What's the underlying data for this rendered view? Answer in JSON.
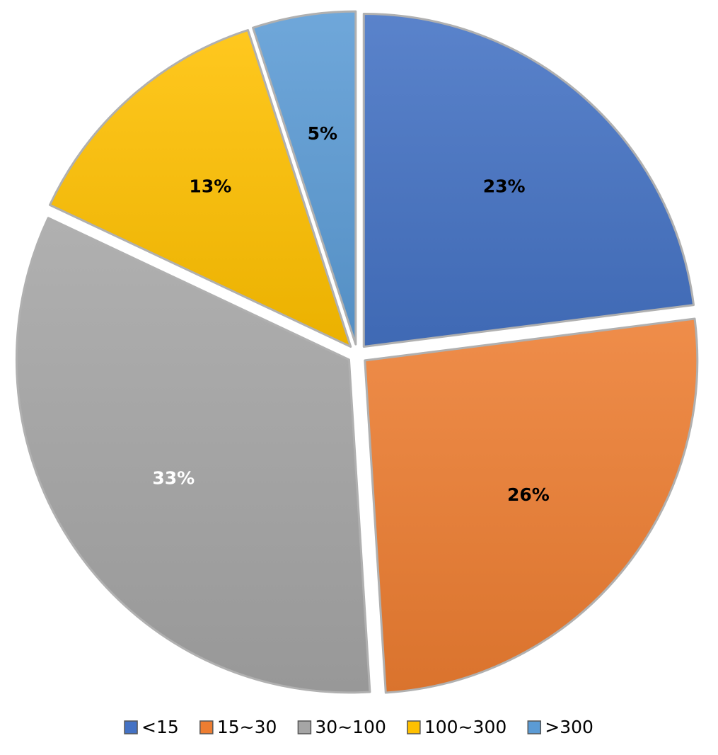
{
  "chart_data": {
    "type": "pie",
    "title": "",
    "categories": [
      "<15",
      "15~30",
      "30~100",
      "100~300",
      ">300"
    ],
    "values": [
      23,
      26,
      33,
      13,
      5
    ],
    "data_labels": [
      "23%",
      "26%",
      "33%",
      "13%",
      "5%"
    ],
    "colors": [
      "#4472c4",
      "#ed7d31",
      "#a5a5a5",
      "#ffc000",
      "#5b9bd5"
    ],
    "label_colors": [
      "#000000",
      "#000000",
      "#ffffff",
      "#000000",
      "#000000"
    ],
    "exploded": true,
    "start_angle_deg": 0,
    "direction": "clockwise",
    "legend": {
      "position": "bottom",
      "entries": [
        "<15",
        "15~30",
        "30~100",
        "100~300",
        ">300"
      ]
    }
  }
}
